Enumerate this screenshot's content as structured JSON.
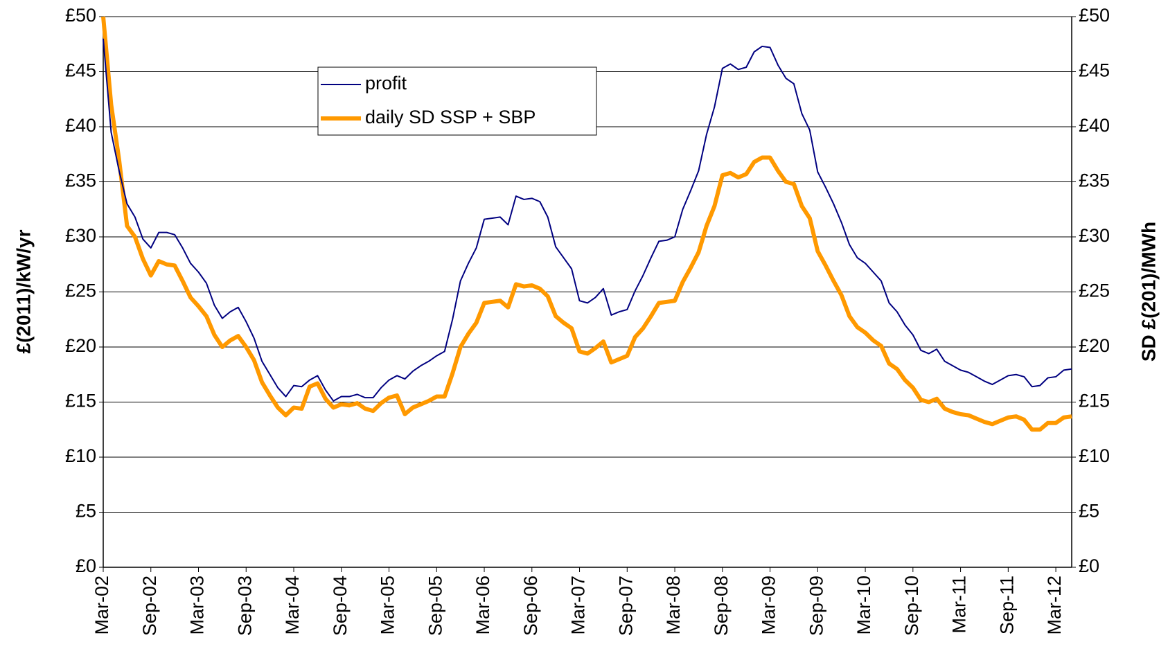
{
  "chart_data": {
    "type": "line",
    "y_label": "£(2011)/kW/yr",
    "y2_label": "SD £(201)/MWh",
    "categories": [
      "Mar-02",
      null,
      null,
      null,
      null,
      null,
      "Sep-02",
      null,
      null,
      null,
      null,
      null,
      "Mar-03",
      null,
      null,
      null,
      null,
      null,
      "Sep-03",
      null,
      null,
      null,
      null,
      null,
      "Mar-04",
      null,
      null,
      null,
      null,
      null,
      "Sep-04",
      null,
      null,
      null,
      null,
      null,
      "Mar-05",
      null,
      null,
      null,
      null,
      null,
      "Sep-05",
      null,
      null,
      null,
      null,
      null,
      "Mar-06",
      null,
      null,
      null,
      null,
      null,
      "Sep-06",
      null,
      null,
      null,
      null,
      null,
      "Mar-07",
      null,
      null,
      null,
      null,
      null,
      "Sep-07",
      null,
      null,
      null,
      null,
      null,
      "Mar-08",
      null,
      null,
      null,
      null,
      null,
      "Sep-08",
      null,
      null,
      null,
      null,
      null,
      "Mar-09",
      null,
      null,
      null,
      null,
      null,
      "Sep-09",
      null,
      null,
      null,
      null,
      null,
      "Mar-10",
      null,
      null,
      null,
      null,
      null,
      "Sep-10",
      null,
      null,
      null,
      null,
      null,
      "Mar-11",
      null,
      null,
      null,
      null,
      null,
      "Sep-11",
      null,
      null,
      null,
      null,
      null,
      "Mar-12",
      null,
      null
    ],
    "series": [
      {
        "name": "profit",
        "color": "#000080",
        "width": 2,
        "values": [
          48,
          39.5,
          36,
          33,
          31.8,
          29.8,
          29,
          30.4,
          30.4,
          30.2,
          29,
          27.6,
          26.8,
          25.8,
          23.8,
          22.6,
          23.2,
          23.6,
          22.3,
          20.8,
          18.7,
          17.5,
          16.3,
          15.5,
          16.5,
          16.4,
          17,
          17.4,
          16.1,
          15.1,
          15.5,
          15.5,
          15.7,
          15.4,
          15.4,
          16.3,
          17,
          17.4,
          17.1,
          17.8,
          18.3,
          18.7,
          19.2,
          19.6,
          22.5,
          26,
          27.6,
          29,
          31.6,
          31.7,
          31.8,
          31.1,
          33.7,
          33.4,
          33.5,
          33.2,
          31.8,
          29.1,
          28.1,
          27.1,
          24.2,
          24,
          24.5,
          25.3,
          22.9,
          23.2,
          23.4,
          25.1,
          26.5,
          28.1,
          29.6,
          29.7,
          30,
          32.5,
          34.2,
          36,
          39.3,
          41.8,
          45.3,
          45.7,
          45.2,
          45.4,
          46.8,
          47.3,
          47.2,
          45.6,
          44.4,
          43.9,
          41.2,
          39.7,
          35.9,
          34.5,
          33,
          31.3,
          29.3,
          28.1,
          27.6,
          26.8,
          26,
          24,
          23.2,
          22,
          21.1,
          19.7,
          19.4,
          19.8,
          18.7,
          18.3,
          17.9,
          17.7,
          17.3,
          16.9,
          16.6,
          17,
          17.4,
          17.5,
          17.3,
          16.4,
          16.5,
          17.2,
          17.3,
          17.9,
          18
        ]
      },
      {
        "name": "daily SD SSP + SBP",
        "color": "#ff9900",
        "width": 6,
        "axis": "y2",
        "values": [
          50,
          42,
          37,
          31,
          30,
          28,
          26.5,
          27.8,
          27.5,
          27.4,
          26,
          24.5,
          23.7,
          22.8,
          21.1,
          20,
          20.6,
          21,
          20,
          18.8,
          16.8,
          15.6,
          14.5,
          13.8,
          14.5,
          14.4,
          16.4,
          16.7,
          15.3,
          14.5,
          14.8,
          14.7,
          14.9,
          14.4,
          14.2,
          14.9,
          15.4,
          15.6,
          13.9,
          14.5,
          14.8,
          15.1,
          15.5,
          15.5,
          17.6,
          20,
          21.2,
          22.2,
          24,
          24.1,
          24.2,
          23.6,
          25.7,
          25.5,
          25.6,
          25.3,
          24.6,
          22.8,
          22.2,
          21.7,
          19.6,
          19.4,
          19.9,
          20.5,
          18.6,
          18.9,
          19.2,
          20.9,
          21.7,
          22.8,
          24,
          24.1,
          24.2,
          25.9,
          27.2,
          28.6,
          31,
          32.8,
          35.6,
          35.8,
          35.4,
          35.7,
          36.8,
          37.2,
          37.2,
          36,
          35,
          34.8,
          32.8,
          31.7,
          28.7,
          27.4,
          26,
          24.7,
          22.8,
          21.8,
          21.3,
          20.6,
          20.1,
          18.5,
          18,
          17,
          16.3,
          15.2,
          15,
          15.3,
          14.4,
          14.1,
          13.9,
          13.8,
          13.5,
          13.2,
          13,
          13.3,
          13.6,
          13.7,
          13.4,
          12.5,
          12.5,
          13.1,
          13.1,
          13.6,
          13.7
        ]
      }
    ],
    "ylim": [
      0,
      50
    ],
    "yticks": [
      {
        "value": 0,
        "label": "£0"
      },
      {
        "value": 5,
        "label": "£5"
      },
      {
        "value": 10,
        "label": "£10"
      },
      {
        "value": 15,
        "label": "£15"
      },
      {
        "value": 20,
        "label": "£20"
      },
      {
        "value": 25,
        "label": "£25"
      },
      {
        "value": 30,
        "label": "£30"
      },
      {
        "value": 35,
        "label": "£35"
      },
      {
        "value": 40,
        "label": "£40"
      },
      {
        "value": 45,
        "label": "£45"
      },
      {
        "value": 50,
        "label": "£50"
      }
    ],
    "y2lim": [
      0,
      50
    ],
    "y2ticks": [
      {
        "value": 0,
        "label": "£0"
      },
      {
        "value": 5,
        "label": "£5"
      },
      {
        "value": 10,
        "label": "£10"
      },
      {
        "value": 15,
        "label": "£15"
      },
      {
        "value": 20,
        "label": "£20"
      },
      {
        "value": 25,
        "label": "£25"
      },
      {
        "value": 30,
        "label": "£30"
      },
      {
        "value": 35,
        "label": "£35"
      },
      {
        "value": 40,
        "label": "£40"
      },
      {
        "value": 45,
        "label": "£45"
      },
      {
        "value": 50,
        "label": "£50"
      }
    ],
    "grid": true,
    "legend": "upper center"
  }
}
